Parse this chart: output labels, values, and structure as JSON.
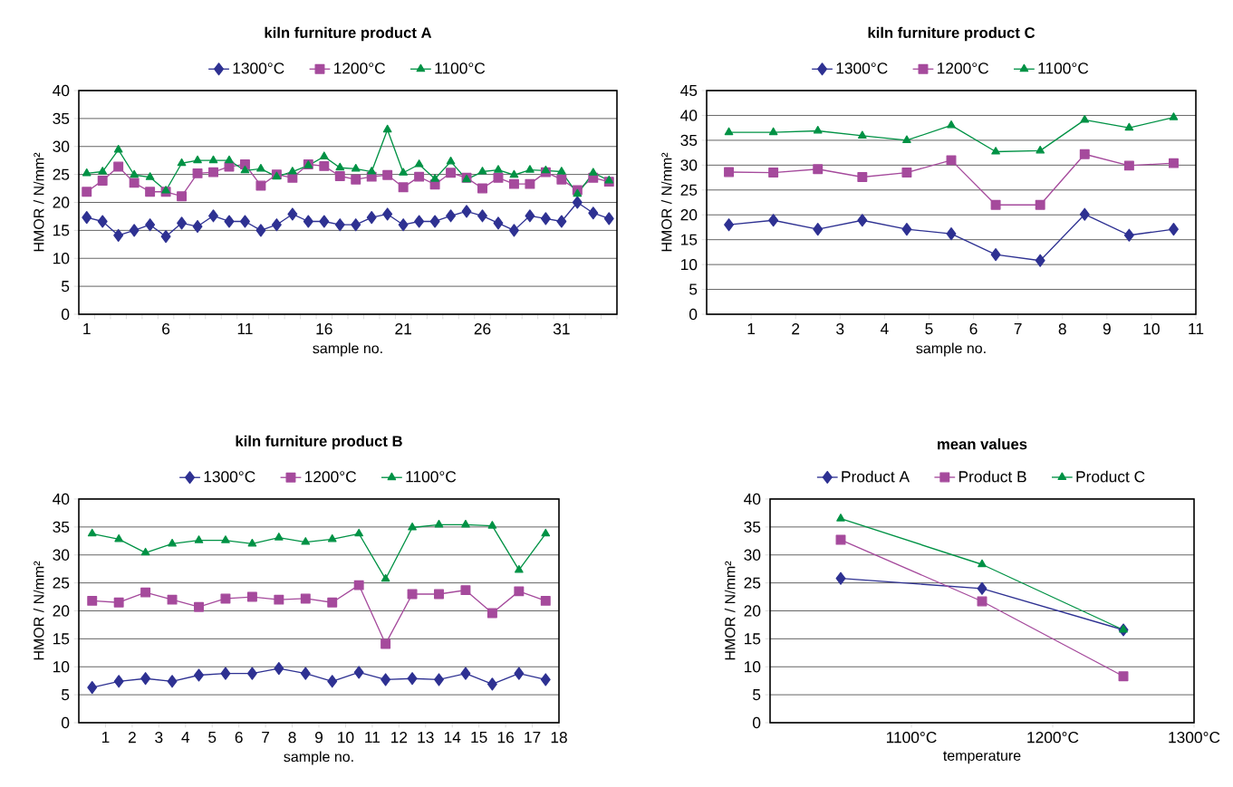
{
  "chart_data": [
    {
      "type": "line",
      "title": "kiln furniture product A",
      "xlabel": "sample no.",
      "ylabel": "HMOR / N/mm²",
      "categories": [
        "1",
        null,
        null,
        null,
        null,
        "6",
        null,
        null,
        null,
        null,
        "11",
        null,
        null,
        null,
        null,
        "16",
        null,
        null,
        null,
        null,
        "21",
        null,
        null,
        null,
        null,
        "26",
        null,
        null,
        null,
        null,
        "31",
        null,
        null,
        null
      ],
      "series": [
        {
          "name": "1300°C",
          "color": "#2e3192",
          "marker": "diamond",
          "values": [
            17.3,
            16.6,
            14.1,
            15.0,
            16.0,
            13.9,
            16.3,
            15.7,
            17.6,
            16.6,
            16.6,
            15.0,
            16.0,
            17.9,
            16.6,
            16.6,
            16.0,
            16.0,
            17.3,
            17.9,
            16.0,
            16.6,
            16.6,
            17.6,
            18.4,
            17.6,
            16.3,
            15.0,
            17.6,
            17.1,
            16.6,
            20.0,
            18.1,
            17.1
          ]
        },
        {
          "name": "1200°C",
          "color": "#a54a9c",
          "marker": "square",
          "values": [
            21.9,
            23.9,
            26.4,
            23.5,
            21.9,
            21.9,
            21.1,
            25.2,
            25.4,
            26.4,
            26.8,
            23.0,
            25.0,
            24.4,
            26.8,
            26.5,
            24.7,
            24.1,
            24.6,
            24.9,
            22.7,
            24.6,
            23.2,
            25.3,
            24.4,
            22.5,
            24.4,
            23.3,
            23.3,
            25.4,
            24.1,
            22.2,
            24.4,
            23.7
          ]
        },
        {
          "name": "1100°C",
          "color": "#009245",
          "marker": "triangle",
          "values": [
            25.2,
            25.5,
            29.4,
            24.9,
            24.5,
            22.1,
            27.0,
            27.5,
            27.5,
            27.5,
            25.7,
            26.0,
            24.6,
            25.5,
            26.6,
            28.2,
            26.2,
            26.0,
            25.5,
            33.0,
            25.3,
            26.8,
            24.2,
            27.3,
            24.1,
            25.5,
            25.8,
            24.9,
            25.8,
            25.7,
            25.5,
            21.5,
            25.3,
            23.9
          ]
        }
      ],
      "ylim": [
        0,
        40
      ],
      "yticks": [
        0,
        5,
        10,
        15,
        20,
        25,
        30,
        35,
        40
      ],
      "grid": "y",
      "legend": "top",
      "line_style": "solid"
    },
    {
      "type": "line",
      "title": "kiln furniture product C",
      "xlabel": "sample no.",
      "ylabel": "HMOR / N/mm²",
      "x": [
        0.5,
        1.5,
        2.5,
        3.5,
        4.5,
        5.5,
        6.5,
        7.5,
        8.5,
        9.5,
        10.5
      ],
      "series": [
        {
          "name": "1300°C",
          "color": "#2e3192",
          "marker": "diamond",
          "values": [
            18.0,
            18.9,
            17.1,
            18.9,
            17.1,
            16.2,
            12.0,
            10.8,
            20.1,
            15.9,
            17.1
          ]
        },
        {
          "name": "1200°C",
          "color": "#a54a9c",
          "marker": "square",
          "values": [
            28.6,
            28.5,
            29.2,
            27.6,
            28.5,
            31.0,
            22.0,
            22.0,
            32.2,
            29.9,
            30.4
          ]
        },
        {
          "name": "1100°C",
          "color": "#009245",
          "marker": "triangle",
          "values": [
            36.6,
            36.6,
            36.9,
            35.9,
            35.0,
            38.0,
            32.7,
            32.9,
            39.1,
            37.5,
            39.6
          ]
        }
      ],
      "xlim": [
        0,
        11
      ],
      "xticks": [
        1,
        2,
        3,
        4,
        5,
        6,
        7,
        8,
        9,
        10,
        11
      ],
      "ylim": [
        0,
        45
      ],
      "yticks": [
        0,
        5,
        10,
        15,
        20,
        25,
        30,
        35,
        40,
        45
      ],
      "grid": "y",
      "legend": "top",
      "line_style": "solid"
    },
    {
      "type": "line",
      "title": "kiln furniture product B",
      "xlabel": "sample no.",
      "ylabel": "HMOR / N/mm²",
      "x": [
        0.5,
        1.5,
        2.5,
        3.5,
        4.5,
        5.5,
        6.5,
        7.5,
        8.5,
        9.5,
        10.5,
        11.5,
        12.5,
        13.5,
        14.5,
        15.5,
        16.5,
        17.5
      ],
      "series": [
        {
          "name": "1300°C",
          "color": "#2e3192",
          "marker": "diamond",
          "values": [
            6.3,
            7.4,
            7.9,
            7.4,
            8.5,
            8.8,
            8.8,
            9.7,
            8.8,
            7.4,
            9.0,
            7.7,
            7.9,
            7.7,
            8.8,
            6.9,
            8.8,
            7.7
          ]
        },
        {
          "name": "1200°C",
          "color": "#a54a9c",
          "marker": "square",
          "values": [
            21.8,
            21.5,
            23.3,
            22.0,
            20.7,
            22.2,
            22.5,
            22.0,
            22.2,
            21.5,
            24.6,
            14.1,
            23.0,
            23.0,
            23.7,
            19.6,
            23.5,
            21.8
          ]
        },
        {
          "name": "1100°C",
          "color": "#009245",
          "marker": "triangle",
          "values": [
            33.8,
            32.8,
            30.4,
            32.0,
            32.6,
            32.6,
            32.0,
            33.1,
            32.3,
            32.8,
            33.8,
            25.7,
            34.9,
            35.4,
            35.4,
            35.2,
            27.3,
            33.8
          ]
        }
      ],
      "xlim": [
        0,
        18
      ],
      "xticks": [
        1,
        2,
        3,
        4,
        5,
        6,
        7,
        8,
        9,
        10,
        11,
        12,
        13,
        14,
        15,
        16,
        17,
        18
      ],
      "ylim": [
        0,
        40
      ],
      "yticks": [
        0,
        5,
        10,
        15,
        20,
        25,
        30,
        35,
        40
      ],
      "grid": "y",
      "legend": "top",
      "line_style": "solid"
    },
    {
      "type": "line",
      "title": "mean values",
      "xlabel": "temperature",
      "ylabel": "HMOR / N/mm²",
      "x": [
        1050,
        1150,
        1250
      ],
      "series": [
        {
          "name": "Product A",
          "color": "#2e3192",
          "marker": "diamond",
          "values": [
            25.8,
            24.0,
            16.6
          ]
        },
        {
          "name": "Product B",
          "color": "#a54a9c",
          "marker": "square",
          "values": [
            32.7,
            21.7,
            8.3
          ]
        },
        {
          "name": "Product C",
          "color": "#009245",
          "marker": "triangle",
          "values": [
            36.5,
            28.3,
            16.6
          ]
        }
      ],
      "xlim": [
        1000,
        1300
      ],
      "xticks": [
        {
          "value": 1100,
          "label": "1100°C"
        },
        {
          "value": 1200,
          "label": "1200°C"
        },
        {
          "value": 1300,
          "label": "1300°C"
        }
      ],
      "ylim": [
        0,
        40
      ],
      "yticks": [
        0,
        5,
        10,
        15,
        20,
        25,
        30,
        35,
        40
      ],
      "grid": "y",
      "legend": "top",
      "line_style": "solid"
    }
  ]
}
